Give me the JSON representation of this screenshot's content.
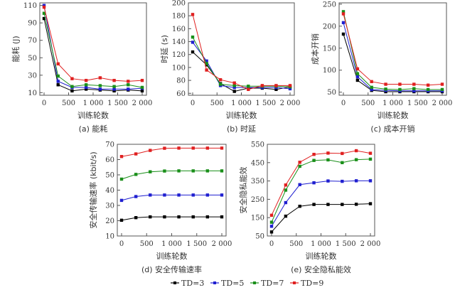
{
  "series_meta": [
    {
      "name": "TD=3",
      "color": "#000000"
    },
    {
      "name": "TD=5",
      "color": "#1f1fd0"
    },
    {
      "name": "TD=7",
      "color": "#1a8f1a"
    },
    {
      "name": "TD=9",
      "color": "#e02020"
    }
  ],
  "legend": [
    "TD=3",
    "TD=5",
    "TD=7",
    "TD=9"
  ],
  "chart_data": [
    {
      "id": "a",
      "type": "line",
      "caption": "(a) 能耗",
      "xlabel": "训练轮数",
      "ylabel": "能耗 (J)",
      "x": [
        0,
        286,
        571,
        857,
        1143,
        1429,
        1714,
        2000
      ],
      "xticks": [
        0,
        500,
        1000,
        1500,
        2000
      ],
      "xtick_labels": [
        "0",
        "500",
        "1 000",
        "1 500",
        "2 000"
      ],
      "ylim": [
        7,
        113
      ],
      "yticks": [
        10,
        30,
        50,
        70,
        90,
        110
      ],
      "ytick_labels": [
        "10",
        "30",
        "50",
        "70",
        "90",
        "110"
      ],
      "series": [
        {
          "name": "TD=3",
          "values": [
            95,
            19,
            12,
            14,
            13,
            12,
            13,
            12
          ]
        },
        {
          "name": "TD=5",
          "values": [
            110,
            23,
            16,
            16,
            14,
            14,
            14,
            15
          ]
        },
        {
          "name": "TD=7",
          "values": [
            101,
            29,
            17,
            19,
            18,
            17,
            19,
            16
          ]
        },
        {
          "name": "TD=9",
          "values": [
            108,
            43,
            26,
            24,
            27,
            24,
            23,
            24
          ]
        }
      ]
    },
    {
      "id": "b",
      "type": "line",
      "caption": "(b) 时延",
      "xlabel": "训练轮数",
      "ylabel": "时延 (s)",
      "x": [
        0,
        286,
        571,
        857,
        1143,
        1429,
        1714,
        2000
      ],
      "xticks": [
        0,
        500,
        1000,
        1500,
        2000
      ],
      "xtick_labels": [
        "0",
        "500",
        "1 000",
        "1 500",
        "2 000"
      ],
      "ylim": [
        57,
        200
      ],
      "yticks": [
        60,
        80,
        100,
        120,
        140,
        160,
        180,
        200
      ],
      "ytick_labels": [
        "60",
        "80",
        "100",
        "120",
        "140",
        "160",
        "180",
        "200"
      ],
      "series": [
        {
          "name": "TD=3",
          "values": [
            124,
            104,
            75,
            63,
            68,
            68,
            66,
            70
          ]
        },
        {
          "name": "TD=5",
          "values": [
            139,
            110,
            72,
            69,
            69,
            69,
            69,
            67
          ]
        },
        {
          "name": "TD=7",
          "values": [
            147,
            106,
            74,
            72,
            71,
            71,
            71,
            70
          ]
        },
        {
          "name": "TD=9",
          "values": [
            182,
            96,
            81,
            76,
            66,
            72,
            72,
            72
          ]
        }
      ]
    },
    {
      "id": "c",
      "type": "line",
      "caption": "(c) 成本开销",
      "xlabel": "训练轮数",
      "ylabel": "成本开销",
      "x": [
        0,
        286,
        571,
        857,
        1143,
        1429,
        1714,
        2000
      ],
      "xticks": [
        0,
        500,
        1000,
        1500,
        2000
      ],
      "xtick_labels": [
        "0",
        "500",
        "1 000",
        "1 500",
        "2 000"
      ],
      "ylim": [
        43,
        253
      ],
      "yticks": [
        50,
        100,
        150,
        200,
        250
      ],
      "ytick_labels": [
        "50",
        "100",
        "150",
        "200",
        "250"
      ],
      "series": [
        {
          "name": "TD=3",
          "values": [
            182,
            77,
            54,
            51,
            51,
            51,
            51,
            51
          ]
        },
        {
          "name": "TD=5",
          "values": [
            208,
            85,
            56,
            54,
            53,
            53,
            53,
            53
          ]
        },
        {
          "name": "TD=7",
          "values": [
            233,
            92,
            61,
            57,
            56,
            58,
            56,
            56
          ]
        },
        {
          "name": "TD=9",
          "values": [
            228,
            103,
            74,
            68,
            68,
            68,
            66,
            68
          ]
        }
      ]
    },
    {
      "id": "d",
      "type": "line",
      "caption": "(d) 安全传输速率",
      "xlabel": "训练轮数",
      "ylabel": "安全传输速率 (kbit/s)",
      "x": [
        0,
        286,
        571,
        857,
        1143,
        1429,
        1714,
        2000
      ],
      "xticks": [
        0,
        500,
        1000,
        1500,
        2000
      ],
      "xtick_labels": [
        "0",
        "500",
        "1 000",
        "1 500",
        "2 000"
      ],
      "ylim": [
        10,
        70
      ],
      "yticks": [
        10,
        20,
        30,
        40,
        50,
        60,
        70
      ],
      "ytick_labels": [
        "10",
        "20",
        "30",
        "40",
        "50",
        "60",
        "70"
      ],
      "series": [
        {
          "name": "TD=3",
          "values": [
            20.3,
            22,
            22.5,
            22.5,
            22.5,
            22.5,
            22.5,
            22.5
          ]
        },
        {
          "name": "TD=5",
          "values": [
            33.3,
            35.8,
            36.8,
            36.8,
            36.8,
            36.8,
            36.8,
            36.8
          ]
        },
        {
          "name": "TD=7",
          "values": [
            47.2,
            50.3,
            52,
            52.5,
            52.6,
            52.6,
            52.6,
            52.6
          ]
        },
        {
          "name": "TD=9",
          "values": [
            62,
            63.7,
            66,
            67.4,
            67.5,
            67.5,
            67.5,
            67.5
          ]
        }
      ]
    },
    {
      "id": "e",
      "type": "line",
      "caption": "(e) 安全隐私能效",
      "xlabel": "训练轮数",
      "ylabel": "安全隐私能效",
      "x": [
        0,
        286,
        571,
        857,
        1143,
        1429,
        1714,
        2000
      ],
      "xticks": [
        0,
        500,
        1000,
        1500,
        2000
      ],
      "xtick_labels": [
        "0",
        "500",
        "1 000",
        "1 500",
        "2 000"
      ],
      "ylim": [
        50,
        550
      ],
      "yticks": [
        50,
        150,
        250,
        350,
        450,
        550
      ],
      "ytick_labels": [
        "50",
        "150",
        "250",
        "350",
        "450",
        "550"
      ],
      "series": [
        {
          "name": "TD=3",
          "values": [
            72,
            158,
            212,
            222,
            222,
            222,
            223,
            226
          ]
        },
        {
          "name": "TD=5",
          "values": [
            103,
            232,
            330,
            340,
            350,
            348,
            351,
            351
          ]
        },
        {
          "name": "TD=7",
          "values": [
            125,
            300,
            430,
            462,
            465,
            450,
            466,
            469
          ]
        },
        {
          "name": "TD=9",
          "values": [
            163,
            328,
            452,
            495,
            502,
            500,
            515,
            501
          ]
        }
      ]
    }
  ]
}
